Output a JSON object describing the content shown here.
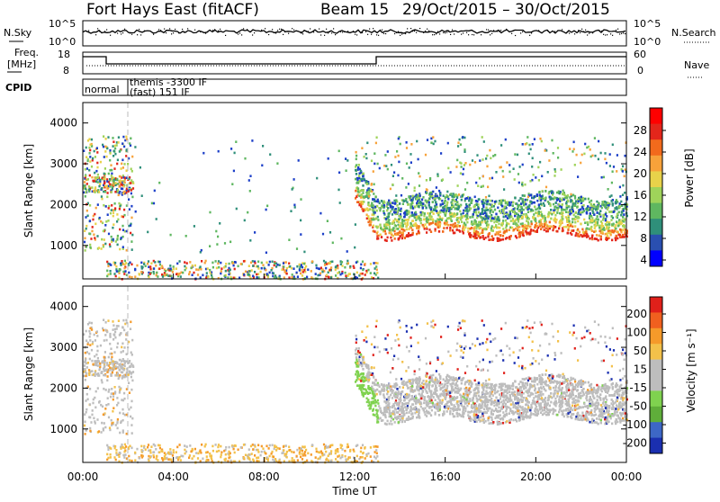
{
  "header": {
    "station": "Fort Hays East (fitACF)",
    "beam": "Beam 15",
    "dates": "29/Oct/2015 – 30/Oct/2015"
  },
  "summary": {
    "nsky_label": "N.Sky",
    "nsearch_label": "N.Search",
    "freq_label": "Freq.",
    "freq_unit": "[MHz]",
    "nave_label": "Nave",
    "cpid_label": "CPID",
    "nsky_ticks": [
      "10^5",
      "10^0"
    ],
    "nsearch_ticks": [
      "10^5",
      "10^0"
    ],
    "freq_ticks": [
      "18",
      "8"
    ],
    "nave_ticks": [
      "60",
      "0"
    ],
    "cpid_labels": [
      "normal",
      "themis -3300 IF",
      "(fast) 151 IF"
    ]
  },
  "chart_data": [
    {
      "type": "heatmap",
      "panel": "power",
      "ylabel": "Slant Range [km]",
      "ylim": [
        180,
        4500
      ],
      "yticks": [
        "1000",
        "2000",
        "3000",
        "4000"
      ],
      "colorbar_label": "Power [dB]",
      "colorbar_ticks": [
        "4",
        "8",
        "12",
        "16",
        "20",
        "24",
        "28"
      ],
      "colors": [
        "#0000ff",
        "#2a4fb0",
        "#2f8f7a",
        "#5fb760",
        "#9fd35a",
        "#e8d24a",
        "#f7a23a",
        "#f26a1c",
        "#e3261b",
        "#ff0000"
      ]
    },
    {
      "type": "heatmap",
      "panel": "velocity",
      "ylabel": "Slant Range [km]",
      "ylim": [
        180,
        4500
      ],
      "yticks": [
        "1000",
        "2000",
        "3000",
        "4000"
      ],
      "colorbar_label": "Velocity [m s⁻¹]",
      "colorbar_ticks": [
        "200",
        "100",
        "50",
        "15",
        "-15",
        "-50",
        "-100",
        "-200"
      ],
      "colors": [
        "#1a2fb0",
        "#3d67c6",
        "#5fae3a",
        "#7fd24f",
        "#bdbdbd",
        "#bdbdbd",
        "#f3c14a",
        "#f59a2a",
        "#f0601f",
        "#e0201a"
      ],
      "xlabel": "Time UT",
      "xticks": [
        "00:00",
        "04:00",
        "08:00",
        "12:00",
        "16:00",
        "20:00",
        "00:00"
      ]
    }
  ],
  "colors": {
    "frame": "#000000",
    "dashed_marker": "#bbbbbb",
    "ground_scatter": "#bdbdbd"
  }
}
